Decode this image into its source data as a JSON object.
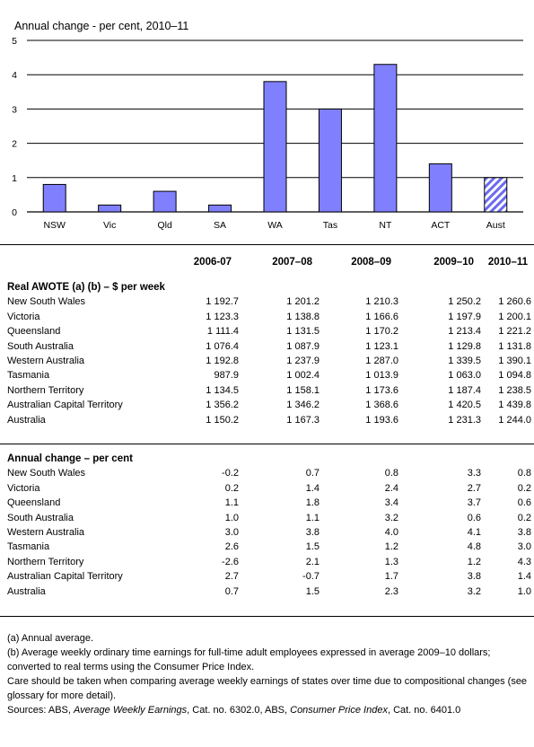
{
  "chart_data": {
    "type": "bar",
    "title": "Annual change - per cent, 2010–11",
    "categories": [
      "NSW",
      "Vic",
      "Qld",
      "SA",
      "WA",
      "Tas",
      "NT",
      "ACT",
      "Aust"
    ],
    "values": [
      0.8,
      0.2,
      0.6,
      0.2,
      3.8,
      3.0,
      4.3,
      1.4,
      1.0
    ],
    "ylim": [
      0,
      5
    ],
    "yticks": [
      "0",
      "1",
      "2",
      "3",
      "4",
      "5"
    ],
    "grid": true,
    "colors": {
      "bar": "#8080ff",
      "highlight_bar": "hatched blue/white (Aust)"
    }
  },
  "table": {
    "columns": [
      "2006-07",
      "2007–08",
      "2008–09",
      "2009–10",
      "2010–11"
    ],
    "sections": [
      {
        "title": "Real AWOTE (a) (b) – $ per week",
        "rows": [
          {
            "label": "New South Wales",
            "values": [
              "1 192.7",
              "1 201.2",
              "1 210.3",
              "1 250.2",
              "1 260.6"
            ]
          },
          {
            "label": "Victoria",
            "values": [
              "1 123.3",
              "1 138.8",
              "1 166.6",
              "1 197.9",
              "1 200.1"
            ]
          },
          {
            "label": "Queensland",
            "values": [
              "1 111.4",
              "1 131.5",
              "1 170.2",
              "1 213.4",
              "1 221.2"
            ]
          },
          {
            "label": "South Australia",
            "values": [
              "1 076.4",
              "1 087.9",
              "1 123.1",
              "1 129.8",
              "1 131.8"
            ]
          },
          {
            "label": "Western Australia",
            "values": [
              "1 192.8",
              "1 237.9",
              "1 287.0",
              "1 339.5",
              "1 390.1"
            ]
          },
          {
            "label": "Tasmania",
            "values": [
              "987.9",
              "1 002.4",
              "1 013.9",
              "1 063.0",
              "1 094.8"
            ]
          },
          {
            "label": "Northern Territory",
            "values": [
              "1 134.5",
              "1 158.1",
              "1 173.6",
              "1 187.4",
              "1 238.5"
            ]
          },
          {
            "label": "Australian Capital Territory",
            "values": [
              "1 356.2",
              "1 346.2",
              "1 368.6",
              "1 420.5",
              "1 439.8"
            ]
          },
          {
            "label": "Australia",
            "values": [
              "1 150.2",
              "1 167.3",
              "1 193.6",
              "1 231.3",
              "1 244.0"
            ]
          }
        ]
      },
      {
        "title": "Annual change – per cent",
        "rows": [
          {
            "label": "New South Wales",
            "values": [
              "-0.2",
              "0.7",
              "0.8",
              "3.3",
              "0.8"
            ]
          },
          {
            "label": "Victoria",
            "values": [
              "0.2",
              "1.4",
              "2.4",
              "2.7",
              "0.2"
            ]
          },
          {
            "label": "Queensland",
            "values": [
              "1.1",
              "1.8",
              "3.4",
              "3.7",
              "0.6"
            ]
          },
          {
            "label": "South Australia",
            "values": [
              "1.0",
              "1.1",
              "3.2",
              "0.6",
              "0.2"
            ]
          },
          {
            "label": "Western Australia",
            "values": [
              "3.0",
              "3.8",
              "4.0",
              "4.1",
              "3.8"
            ]
          },
          {
            "label": "Tasmania",
            "values": [
              "2.6",
              "1.5",
              "1.2",
              "4.8",
              "3.0"
            ]
          },
          {
            "label": "Northern Territory",
            "values": [
              "-2.6",
              "2.1",
              "1.3",
              "1.2",
              "4.3"
            ]
          },
          {
            "label": "Australian Capital Territory",
            "values": [
              "2.7",
              "-0.7",
              "1.7",
              "3.8",
              "1.4"
            ]
          },
          {
            "label": "Australia",
            "values": [
              "0.7",
              "1.5",
              "2.3",
              "3.2",
              "1.0"
            ]
          }
        ]
      }
    ]
  },
  "notes": {
    "a": "(a) Annual average.",
    "b": "(b) Average weekly ordinary time earnings for full-time adult employees expressed in average 2009–10 dollars; converted to real terms using the Consumer Price Index.",
    "care": "Care should be taken when comparing average weekly earnings of states over time due to compositional changes (see glossary for more detail).",
    "sources_prefix": "Sources: ABS, ",
    "source1": "Average Weekly Earnings",
    "source1_suffix": ", Cat. no. 6302.0,  ABS, ",
    "source2": "Consumer Price Index",
    "source2_suffix": ", Cat. no. 6401.0"
  }
}
